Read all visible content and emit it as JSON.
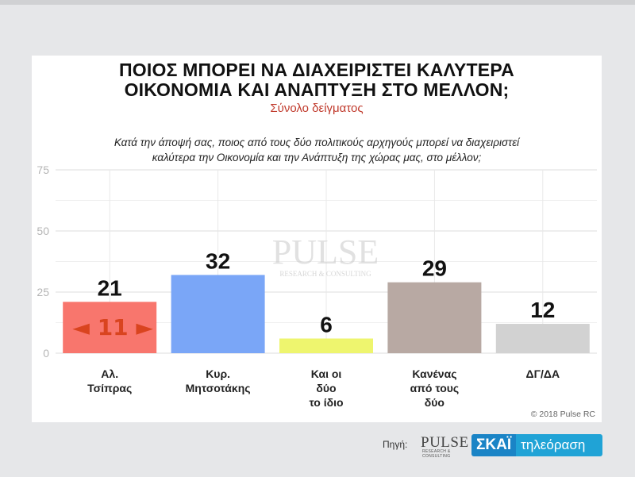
{
  "title_line1": "ΠΟΙΟΣ ΜΠΟΡΕΙ ΝΑ ΔΙΑΧΕΙΡΙΣΤΕΙ ΚΑΛΥΤΕΡΑ",
  "title_line2": "ΟΙΚΟΝΟΜΙΑ ΚΑΙ ΑΝΑΠΤΥΞΗ ΣΤΟ ΜΕΛΛΟΝ;",
  "subtitle": "Σύνολο δείγματος",
  "question_line1": "Κατά την άποψή σας, ποιος από τους δύο πολιτικούς αρχηγούς μπορεί να διαχειριστεί",
  "question_line2": "καλύτερα την Οικονομία και την Ανάπτυξη της χώρας μας, στο μέλλον;",
  "copyright": "© 2018 Pulse RC",
  "watermark": {
    "main": "PULSE",
    "sub": "RESEARCH & CONSULTING"
  },
  "footer": {
    "source_label": "Πηγή:",
    "pulse_logo": "PULSE",
    "pulse_logo_sub": "RESEARCH & CONSULTING",
    "skai_brand": "ΣΚΑΪ",
    "skai_tv": "τηλεόραση"
  },
  "chart_data": {
    "type": "bar",
    "categories": [
      [
        "Αλ.",
        "Τσίπρας"
      ],
      [
        "Κυρ.",
        "Μητσοτάκης"
      ],
      [
        "Και οι",
        "δύο",
        "το ίδιο"
      ],
      [
        "Κανένας",
        "από τους",
        "δύο"
      ],
      [
        "ΔΓ/ΔΑ"
      ]
    ],
    "values": [
      21,
      32,
      6,
      29,
      12
    ],
    "colors": [
      "#f8766d",
      "#7aa6f7",
      "#eef56e",
      "#b8a9a3",
      "#d2d2d2"
    ],
    "ylim": [
      0,
      75
    ],
    "yticks": [
      0,
      25,
      50,
      75
    ],
    "grid": true,
    "annotation": {
      "text": "◄ 11 ►",
      "color": "#d9441f",
      "between": [
        0,
        1
      ]
    }
  }
}
